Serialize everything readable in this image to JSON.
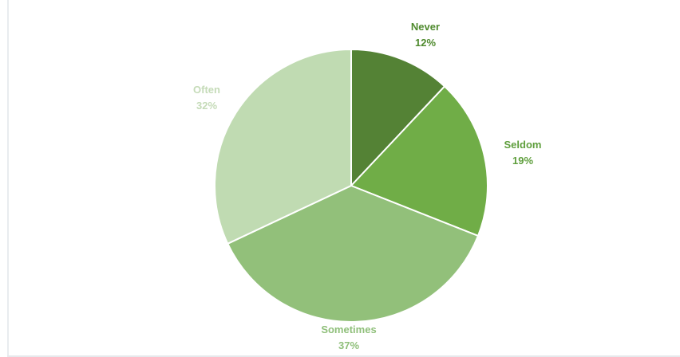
{
  "chart_data": {
    "type": "pie",
    "categories": [
      "Never",
      "Seldom",
      "Sometimes",
      "Often"
    ],
    "values": [
      12,
      19,
      37,
      32
    ],
    "percent_labels": [
      "12%",
      "19%",
      "37%",
      "32%"
    ],
    "colors": [
      "#548235",
      "#70ad47",
      "#92c07a",
      "#c0dbb2"
    ],
    "label_colors": [
      "#4f8a2e",
      "#5e9e3c",
      "#8fbf7a",
      "#c5dbb8"
    ],
    "title": "",
    "legend": "none",
    "data_labels": "outside"
  }
}
